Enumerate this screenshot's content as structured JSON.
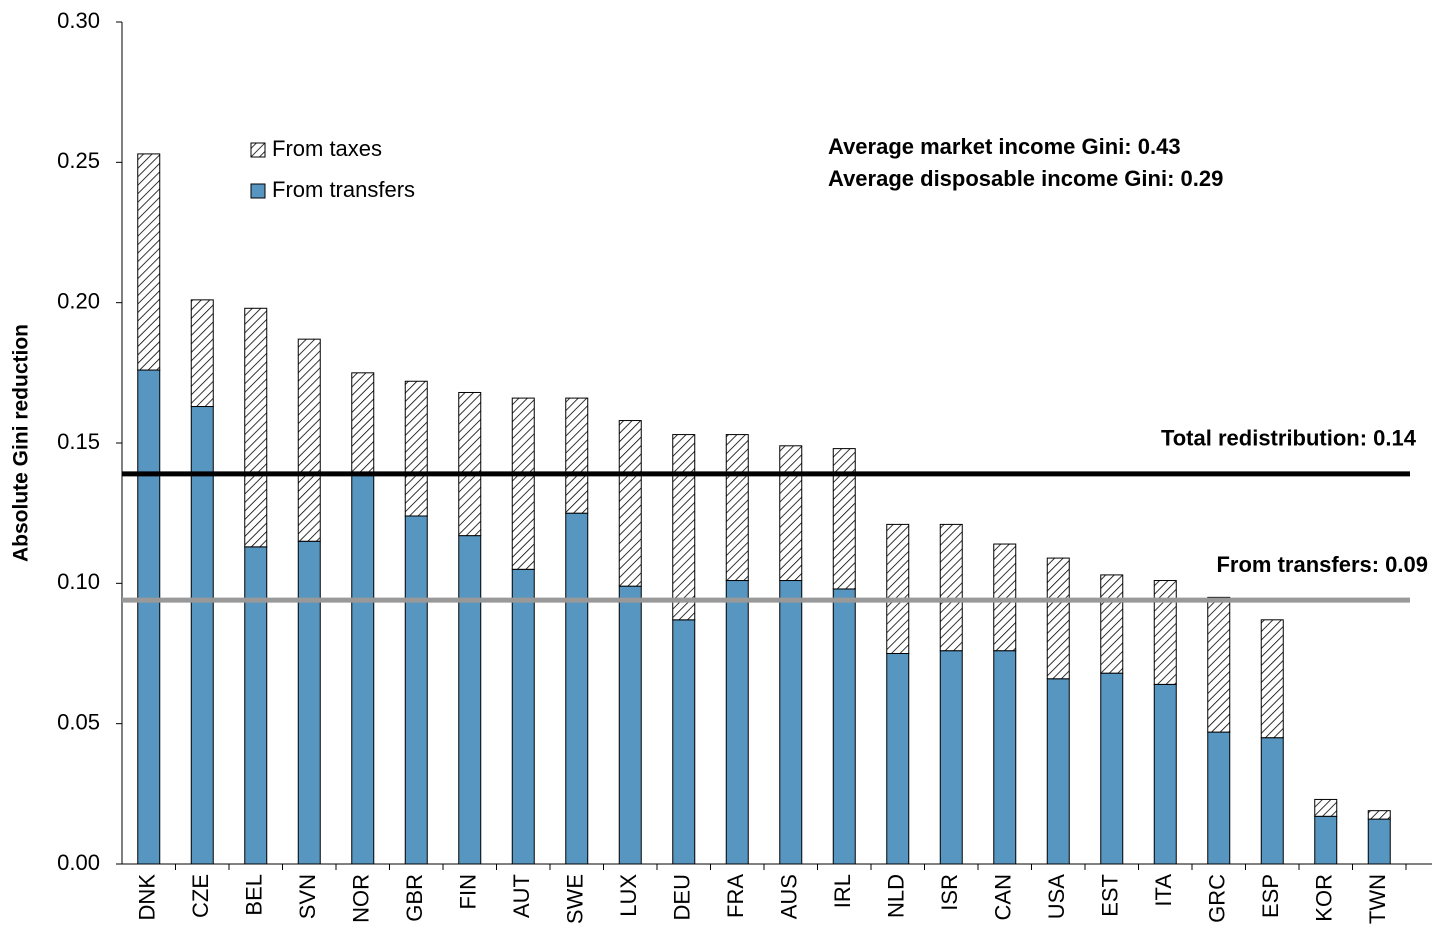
{
  "chart_data": {
    "type": "stacked_bar",
    "y_label": "Absolute Gini reduction",
    "categories": [
      "DNK",
      "CZE",
      "BEL",
      "SVN",
      "NOR",
      "GBR",
      "FIN",
      "AUT",
      "SWE",
      "LUX",
      "DEU",
      "FRA",
      "AUS",
      "IRL",
      "NLD",
      "ISR",
      "CAN",
      "USA",
      "EST",
      "ITA",
      "GRC",
      "ESP",
      "KOR",
      "TWN"
    ],
    "series": [
      {
        "name": "From transfers",
        "color": "#5796c0",
        "hatch": false,
        "values": [
          0.176,
          0.163,
          0.113,
          0.115,
          0.139,
          0.124,
          0.117,
          0.105,
          0.125,
          0.099,
          0.087,
          0.101,
          0.101,
          0.098,
          0.075,
          0.076,
          0.076,
          0.066,
          0.068,
          0.064,
          0.047,
          0.045,
          0.017,
          0.016
        ]
      },
      {
        "name": "From taxes",
        "color": "#000000",
        "hatch": true,
        "values": [
          0.077,
          0.038,
          0.085,
          0.072,
          0.036,
          0.048,
          0.051,
          0.061,
          0.041,
          0.059,
          0.066,
          0.052,
          0.048,
          0.05,
          0.046,
          0.045,
          0.038,
          0.043,
          0.035,
          0.037,
          0.048,
          0.042,
          0.006,
          0.003
        ]
      }
    ],
    "ylim": [
      0,
      0.3
    ],
    "yticks": [
      {
        "value": 0,
        "label": "0.00"
      },
      {
        "value": 0.05,
        "label": "0.05"
      },
      {
        "value": 0.1,
        "label": "0.10"
      },
      {
        "value": 0.15,
        "label": "0.15"
      },
      {
        "value": 0.2,
        "label": "0.20"
      },
      {
        "value": 0.25,
        "label": "0.25"
      },
      {
        "value": 0.3,
        "label": "0.30"
      }
    ],
    "reference_lines": [
      {
        "label": "Total redistribution:  0.14",
        "value": 0.139,
        "color": "#000000",
        "label_color": "#2e5c9a"
      },
      {
        "label": "From transfers: 0.09",
        "value": 0.094,
        "color": "#999999",
        "label_color": "#2e5c9a"
      }
    ],
    "annotations": [
      "Average market income Gini: 0.43",
      "Average disposable income Gini: 0.29"
    ],
    "annotation_color": "#5b8fbd",
    "legend_position": "upper left"
  }
}
